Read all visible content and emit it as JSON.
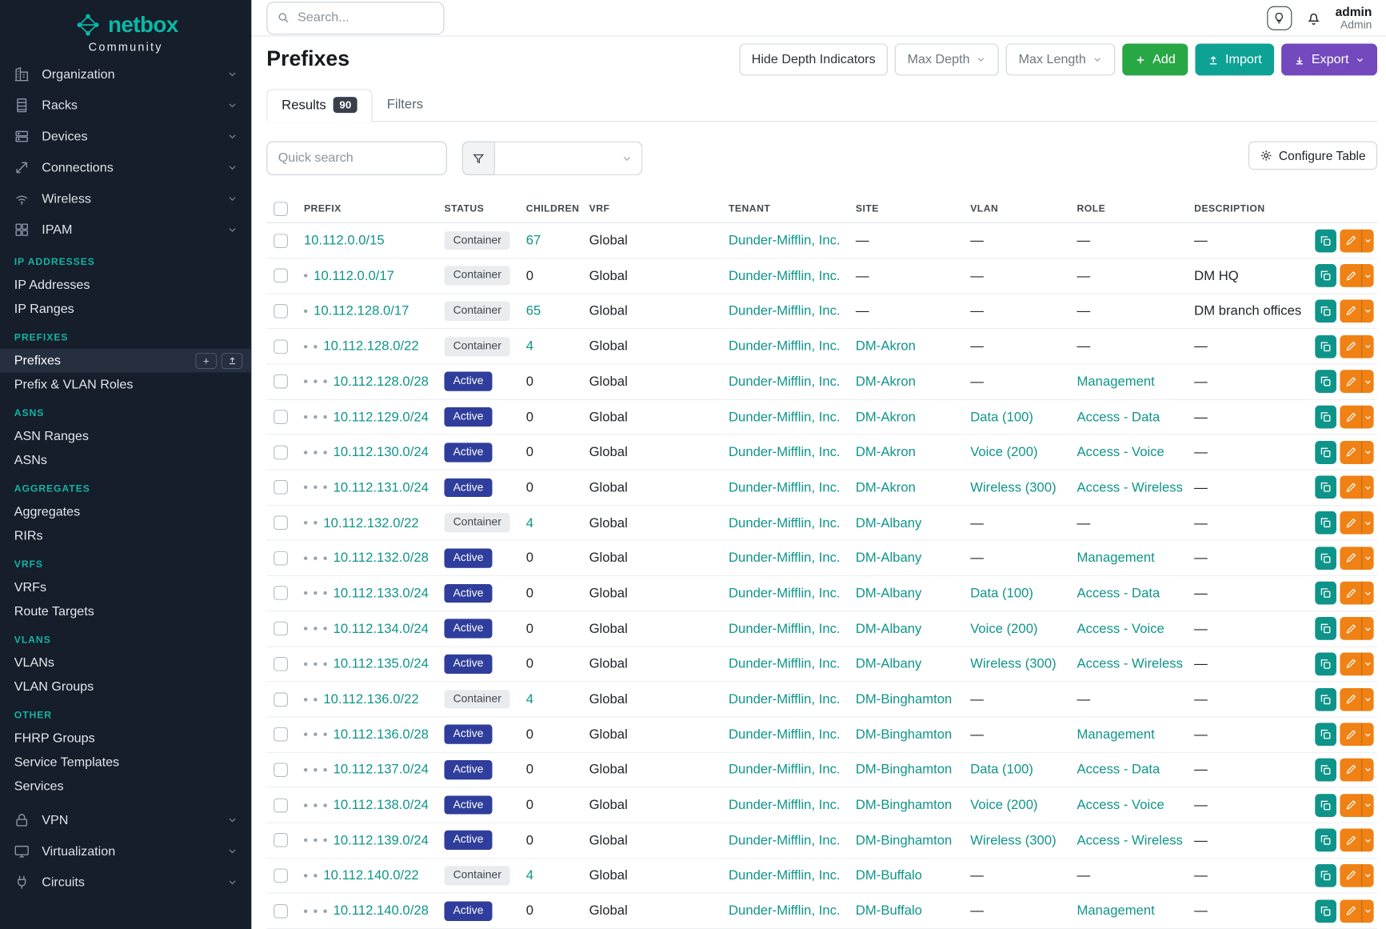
{
  "brand": {
    "name": "netbox",
    "subtitle": "Community",
    "logo_icon": "netbox-logo-icon"
  },
  "topbar": {
    "search_placeholder": "Search...",
    "theme_icon": "lightbulb-icon",
    "notifications_icon": "bell-icon",
    "user_name": "admin",
    "user_role": "Admin"
  },
  "sidebar": {
    "groups_top": [
      {
        "label": "Organization",
        "icon": "organization-icon"
      },
      {
        "label": "Racks",
        "icon": "racks-icon"
      },
      {
        "label": "Devices",
        "icon": "devices-icon"
      },
      {
        "label": "Connections",
        "icon": "connections-icon"
      },
      {
        "label": "Wireless",
        "icon": "wireless-icon"
      },
      {
        "label": "IPAM",
        "icon": "ipam-icon"
      }
    ],
    "ipam_sections": [
      {
        "heading": "IP ADDRESSES",
        "items": [
          {
            "label": "IP Addresses"
          },
          {
            "label": "IP Ranges"
          }
        ]
      },
      {
        "heading": "PREFIXES",
        "items": [
          {
            "label": "Prefixes",
            "active": true
          },
          {
            "label": "Prefix & VLAN Roles"
          }
        ]
      },
      {
        "heading": "ASNS",
        "items": [
          {
            "label": "ASN Ranges"
          },
          {
            "label": "ASNs"
          }
        ]
      },
      {
        "heading": "AGGREGATES",
        "items": [
          {
            "label": "Aggregates"
          },
          {
            "label": "RIRs"
          }
        ]
      },
      {
        "heading": "VRFS",
        "items": [
          {
            "label": "VRFs"
          },
          {
            "label": "Route Targets"
          }
        ]
      },
      {
        "heading": "VLANS",
        "items": [
          {
            "label": "VLANs"
          },
          {
            "label": "VLAN Groups"
          }
        ]
      },
      {
        "heading": "OTHER",
        "items": [
          {
            "label": "FHRP Groups"
          },
          {
            "label": "Service Templates"
          },
          {
            "label": "Services"
          }
        ]
      }
    ],
    "groups_bottom": [
      {
        "label": "VPN",
        "icon": "vpn-icon"
      },
      {
        "label": "Virtualization",
        "icon": "virtualization-icon"
      },
      {
        "label": "Circuits",
        "icon": "circuits-icon"
      }
    ]
  },
  "page": {
    "title": "Prefixes",
    "toolbar": {
      "hide_depth_label": "Hide Depth Indicators",
      "max_depth_label": "Max Depth",
      "max_length_label": "Max Length",
      "add_label": "Add",
      "import_label": "Import",
      "export_label": "Export"
    },
    "tabs": [
      {
        "label": "Results",
        "badge": "90"
      },
      {
        "label": "Filters"
      }
    ],
    "filters": {
      "quick_search_placeholder": "Quick search",
      "configure_table_label": "Configure Table"
    }
  },
  "colors": {
    "accent_teal": "#0f9589",
    "sidebar_bg": "#161d2b",
    "active_badge_blue": "#2f3e9c",
    "container_badge_bg": "#e9ecef",
    "add_green": "#28a745",
    "import_teal": "#0ea295",
    "export_purple": "#7349bd",
    "edit_orange": "#f08114"
  },
  "table": {
    "columns": [
      "PREFIX",
      "STATUS",
      "CHILDREN",
      "VRF",
      "TENANT",
      "SITE",
      "VLAN",
      "ROLE",
      "DESCRIPTION"
    ],
    "rows": [
      {
        "depth": 0,
        "prefix": "10.112.0.0/15",
        "status": "Container",
        "children": "67",
        "vrf": "Global",
        "tenant": "Dunder-Mifflin, Inc.",
        "site": "—",
        "vlan": "—",
        "role": "—",
        "description": "—"
      },
      {
        "depth": 1,
        "prefix": "10.112.0.0/17",
        "status": "Container",
        "children": "0",
        "vrf": "Global",
        "tenant": "Dunder-Mifflin, Inc.",
        "site": "—",
        "vlan": "—",
        "role": "—",
        "description": "DM HQ"
      },
      {
        "depth": 1,
        "prefix": "10.112.128.0/17",
        "status": "Container",
        "children": "65",
        "vrf": "Global",
        "tenant": "Dunder-Mifflin, Inc.",
        "site": "—",
        "vlan": "—",
        "role": "—",
        "description": "DM branch offices"
      },
      {
        "depth": 2,
        "prefix": "10.112.128.0/22",
        "status": "Container",
        "children": "4",
        "vrf": "Global",
        "tenant": "Dunder-Mifflin, Inc.",
        "site": "DM-Akron",
        "vlan": "—",
        "role": "—",
        "description": "—"
      },
      {
        "depth": 3,
        "prefix": "10.112.128.0/28",
        "status": "Active",
        "children": "0",
        "vrf": "Global",
        "tenant": "Dunder-Mifflin, Inc.",
        "site": "DM-Akron",
        "vlan": "—",
        "role": "Management",
        "description": "—"
      },
      {
        "depth": 3,
        "prefix": "10.112.129.0/24",
        "status": "Active",
        "children": "0",
        "vrf": "Global",
        "tenant": "Dunder-Mifflin, Inc.",
        "site": "DM-Akron",
        "vlan": "Data (100)",
        "role": "Access - Data",
        "description": "—"
      },
      {
        "depth": 3,
        "prefix": "10.112.130.0/24",
        "status": "Active",
        "children": "0",
        "vrf": "Global",
        "tenant": "Dunder-Mifflin, Inc.",
        "site": "DM-Akron",
        "vlan": "Voice (200)",
        "role": "Access - Voice",
        "description": "—"
      },
      {
        "depth": 3,
        "prefix": "10.112.131.0/24",
        "status": "Active",
        "children": "0",
        "vrf": "Global",
        "tenant": "Dunder-Mifflin, Inc.",
        "site": "DM-Akron",
        "vlan": "Wireless (300)",
        "role": "Access - Wireless",
        "description": "—"
      },
      {
        "depth": 2,
        "prefix": "10.112.132.0/22",
        "status": "Container",
        "children": "4",
        "vrf": "Global",
        "tenant": "Dunder-Mifflin, Inc.",
        "site": "DM-Albany",
        "vlan": "—",
        "role": "—",
        "description": "—"
      },
      {
        "depth": 3,
        "prefix": "10.112.132.0/28",
        "status": "Active",
        "children": "0",
        "vrf": "Global",
        "tenant": "Dunder-Mifflin, Inc.",
        "site": "DM-Albany",
        "vlan": "—",
        "role": "Management",
        "description": "—"
      },
      {
        "depth": 3,
        "prefix": "10.112.133.0/24",
        "status": "Active",
        "children": "0",
        "vrf": "Global",
        "tenant": "Dunder-Mifflin, Inc.",
        "site": "DM-Albany",
        "vlan": "Data (100)",
        "role": "Access - Data",
        "description": "—"
      },
      {
        "depth": 3,
        "prefix": "10.112.134.0/24",
        "status": "Active",
        "children": "0",
        "vrf": "Global",
        "tenant": "Dunder-Mifflin, Inc.",
        "site": "DM-Albany",
        "vlan": "Voice (200)",
        "role": "Access - Voice",
        "description": "—"
      },
      {
        "depth": 3,
        "prefix": "10.112.135.0/24",
        "status": "Active",
        "children": "0",
        "vrf": "Global",
        "tenant": "Dunder-Mifflin, Inc.",
        "site": "DM-Albany",
        "vlan": "Wireless (300)",
        "role": "Access - Wireless",
        "description": "—"
      },
      {
        "depth": 2,
        "prefix": "10.112.136.0/22",
        "status": "Container",
        "children": "4",
        "vrf": "Global",
        "tenant": "Dunder-Mifflin, Inc.",
        "site": "DM-Binghamton",
        "vlan": "—",
        "role": "—",
        "description": "—"
      },
      {
        "depth": 3,
        "prefix": "10.112.136.0/28",
        "status": "Active",
        "children": "0",
        "vrf": "Global",
        "tenant": "Dunder-Mifflin, Inc.",
        "site": "DM-Binghamton",
        "vlan": "—",
        "role": "Management",
        "description": "—"
      },
      {
        "depth": 3,
        "prefix": "10.112.137.0/24",
        "status": "Active",
        "children": "0",
        "vrf": "Global",
        "tenant": "Dunder-Mifflin, Inc.",
        "site": "DM-Binghamton",
        "vlan": "Data (100)",
        "role": "Access - Data",
        "description": "—"
      },
      {
        "depth": 3,
        "prefix": "10.112.138.0/24",
        "status": "Active",
        "children": "0",
        "vrf": "Global",
        "tenant": "Dunder-Mifflin, Inc.",
        "site": "DM-Binghamton",
        "vlan": "Voice (200)",
        "role": "Access - Voice",
        "description": "—"
      },
      {
        "depth": 3,
        "prefix": "10.112.139.0/24",
        "status": "Active",
        "children": "0",
        "vrf": "Global",
        "tenant": "Dunder-Mifflin, Inc.",
        "site": "DM-Binghamton",
        "vlan": "Wireless (300)",
        "role": "Access - Wireless",
        "description": "—"
      },
      {
        "depth": 2,
        "prefix": "10.112.140.0/22",
        "status": "Container",
        "children": "4",
        "vrf": "Global",
        "tenant": "Dunder-Mifflin, Inc.",
        "site": "DM-Buffalo",
        "vlan": "—",
        "role": "—",
        "description": "—"
      },
      {
        "depth": 3,
        "prefix": "10.112.140.0/28",
        "status": "Active",
        "children": "0",
        "vrf": "Global",
        "tenant": "Dunder-Mifflin, Inc.",
        "site": "DM-Buffalo",
        "vlan": "—",
        "role": "Management",
        "description": "—"
      }
    ]
  }
}
